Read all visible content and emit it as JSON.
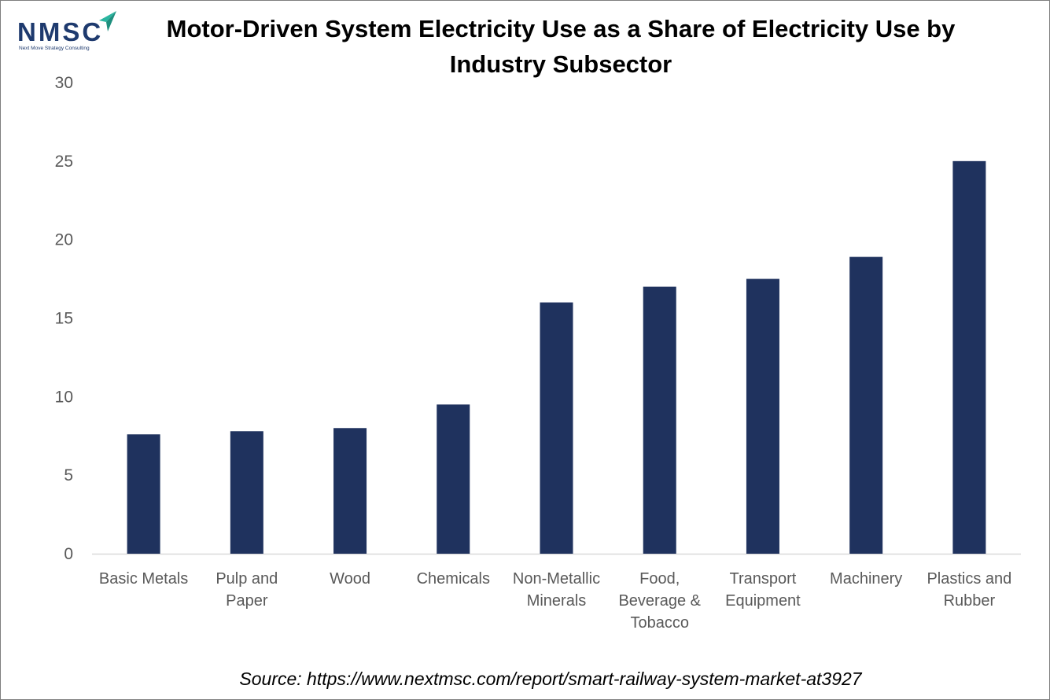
{
  "logo": {
    "wordmark": "NMSC",
    "tagline": "Next Move Strategy Consulting"
  },
  "colors": {
    "bar": "#1f325e",
    "axis_text": "#595959",
    "axis_line": "#d9d9d9",
    "logo_blue": "#1e3a6e",
    "logo_teal": "#2bb5a0"
  },
  "source_text": "Source: https://www.nextmsc.com/report/smart-railway-system-market-at3927",
  "chart_data": {
    "type": "bar",
    "title": "Motor-Driven System Electricity Use as a Share of Electricity Use by Industry Subsector",
    "xlabel": "",
    "ylabel": "",
    "categories": [
      "Basic Metals",
      "Pulp and Paper",
      "Wood",
      "Chemicals",
      "Non-Metallic Minerals",
      "Food, Beverage & Tobacco",
      "Transport Equipment",
      "Machinery",
      "Plastics and Rubber"
    ],
    "category_lines": [
      [
        "Basic Metals"
      ],
      [
        "Pulp and",
        "Paper"
      ],
      [
        "Wood"
      ],
      [
        "Chemicals"
      ],
      [
        "Non-Metallic",
        "Minerals"
      ],
      [
        "Food,",
        "Beverage &",
        "Tobacco"
      ],
      [
        "Transport",
        "Equipment"
      ],
      [
        "Machinery"
      ],
      [
        "Plastics and",
        "Rubber"
      ]
    ],
    "values": [
      7.6,
      7.8,
      8.0,
      9.5,
      16.0,
      17.0,
      17.5,
      18.9,
      25.0
    ],
    "ylim": [
      0,
      30
    ],
    "yticks": [
      0,
      5,
      10,
      15,
      20,
      25,
      30
    ],
    "grid": false,
    "legend": "none"
  }
}
